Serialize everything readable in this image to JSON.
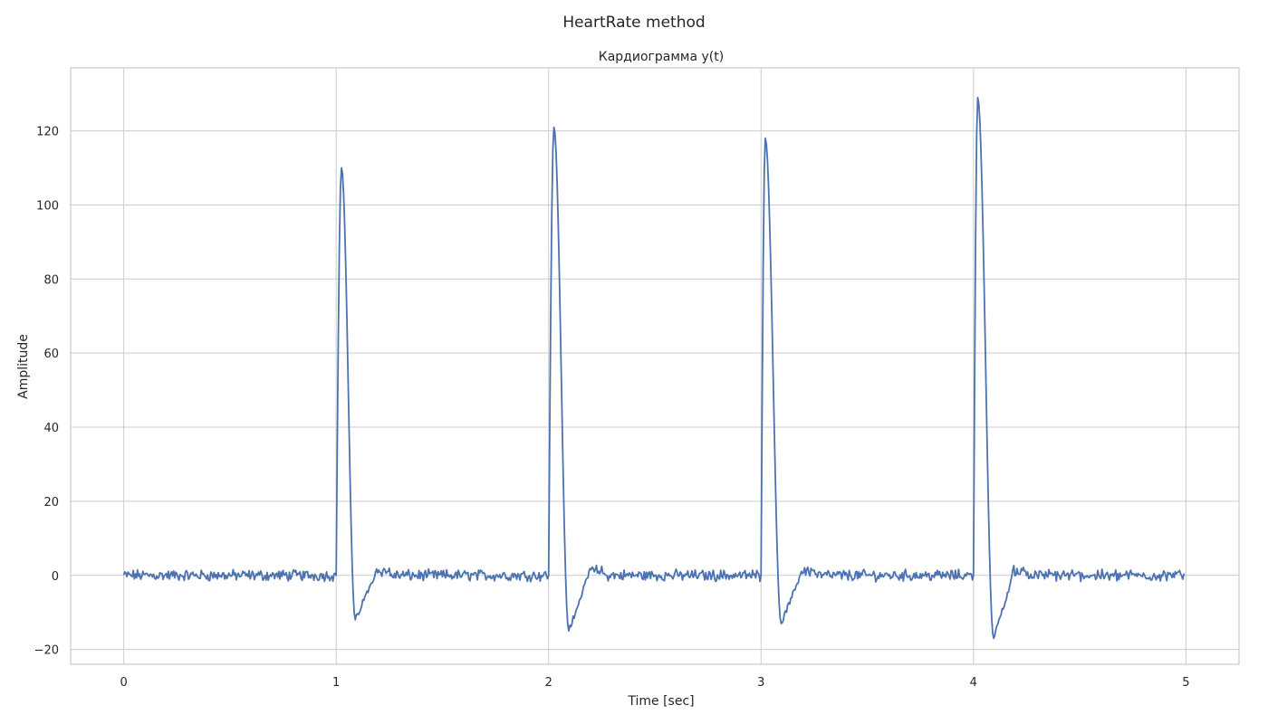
{
  "chart_data": {
    "type": "line",
    "suptitle": "HeartRate method",
    "title": "Кардиограмма y(t)",
    "xlabel": "Time [sec]",
    "ylabel": "Amplitude",
    "xlim": [
      -0.25,
      5.25
    ],
    "ylim": [
      -24,
      137
    ],
    "xticks": [
      0,
      1,
      2,
      3,
      4,
      5
    ],
    "xtick_labels": [
      "0",
      "1",
      "2",
      "3",
      "4",
      "5"
    ],
    "yticks": [
      -20,
      0,
      20,
      40,
      60,
      80,
      100,
      120
    ],
    "ytick_labels": [
      "−20",
      "0",
      "20",
      "40",
      "60",
      "80",
      "100",
      "120"
    ],
    "grid": true,
    "series": [
      {
        "color": "#4c72b0",
        "sampling_interval": 0.005,
        "x_range": [
          0,
          4.995
        ],
        "baseline": 0,
        "noise_amplitude": 1.2,
        "beats": [
          {
            "onset": 1.0,
            "peak_t": 1.025,
            "peak": 110,
            "trough_t": 1.09,
            "trough": -12
          },
          {
            "onset": 2.0,
            "peak_t": 2.025,
            "peak": 121,
            "trough_t": 2.095,
            "trough": -15
          },
          {
            "onset": 3.0,
            "peak_t": 3.02,
            "peak": 118,
            "trough_t": 3.095,
            "trough": -13
          },
          {
            "onset": 4.0,
            "peak_t": 4.02,
            "peak": 129,
            "trough_t": 4.095,
            "trough": -17
          }
        ]
      }
    ],
    "colors": {
      "line": "#4c72b0",
      "grid": "#cccccc",
      "text": "#262626",
      "background": "#ffffff"
    }
  }
}
